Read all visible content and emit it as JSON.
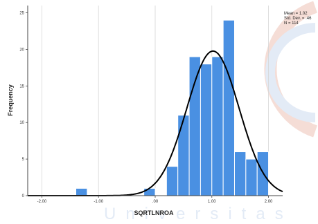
{
  "chart_data": {
    "type": "bar",
    "subtype": "histogram",
    "xlabel": "SQRTLNROA",
    "ylabel": "Frequency",
    "xlim": [
      -2.25,
      2.25
    ],
    "ylim": [
      0,
      26
    ],
    "xticks": [
      -2.0,
      -1.0,
      0.0,
      1.0,
      2.0
    ],
    "xtick_labels": [
      "-2.00",
      "-1.00",
      ".00",
      "1.00",
      "2.00"
    ],
    "yticks": [
      0,
      5,
      10,
      15,
      20,
      25
    ],
    "ytick_labels": [
      "0",
      "5",
      "10",
      "15",
      "20",
      "25"
    ],
    "grid": "vertical lines at x ticks",
    "bin_width": 0.2,
    "bins": [
      {
        "start": -1.4,
        "end": -1.2,
        "count": 1
      },
      {
        "start": -0.2,
        "end": 0.0,
        "count": 1
      },
      {
        "start": 0.2,
        "end": 0.4,
        "count": 4
      },
      {
        "start": 0.4,
        "end": 0.6,
        "count": 11
      },
      {
        "start": 0.6,
        "end": 0.8,
        "count": 19
      },
      {
        "start": 0.8,
        "end": 1.0,
        "count": 18
      },
      {
        "start": 1.0,
        "end": 1.2,
        "count": 19
      },
      {
        "start": 1.2,
        "end": 1.4,
        "count": 24
      },
      {
        "start": 1.4,
        "end": 1.6,
        "count": 6
      },
      {
        "start": 1.6,
        "end": 1.8,
        "count": 5
      },
      {
        "start": 1.8,
        "end": 2.0,
        "count": 6
      }
    ],
    "normal_curve": {
      "mean": 1.02,
      "std": 0.46,
      "n": 114
    },
    "stats_box": {
      "position": "top-right",
      "lines": [
        "Mean = 1.02",
        "Std. Dev. = .46",
        "N = 114"
      ]
    },
    "colors": {
      "bar_fill": "#4a90e2",
      "bar_edge": "#ffffff",
      "curve": "#000000",
      "grid": "#d6d6d6",
      "axis": "#444444"
    }
  },
  "watermark": {
    "text": "Universitas"
  }
}
